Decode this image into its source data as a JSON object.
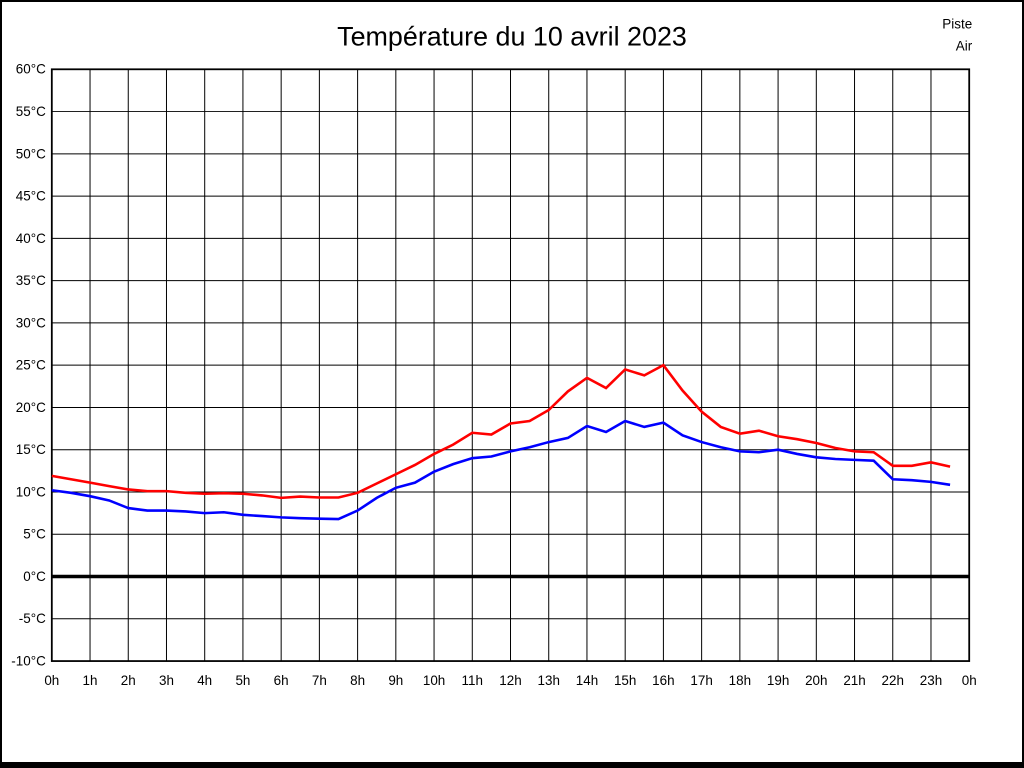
{
  "title": "Température du 10 avril 2023",
  "legend": [
    {
      "label": "Piste",
      "color": "#ff0000"
    },
    {
      "label": "Air",
      "color": "#0000ff"
    }
  ],
  "chart_data": {
    "type": "line",
    "title": "Température du 10 avril 2023",
    "x_unit": "hour",
    "xlim": [
      0,
      24
    ],
    "ylim": [
      -10,
      60
    ],
    "y_step": 5,
    "grid": true,
    "zero_line_value": 0,
    "legend_position": "top-right",
    "axis_color": "#000000",
    "x_tick_labels": [
      "0h",
      "1h",
      "2h",
      "3h",
      "4h",
      "5h",
      "6h",
      "7h",
      "8h",
      "9h",
      "10h",
      "11h",
      "12h",
      "13h",
      "14h",
      "15h",
      "16h",
      "17h",
      "18h",
      "19h",
      "20h",
      "21h",
      "22h",
      "23h",
      "0h"
    ],
    "y_tick_labels": [
      "60°C",
      "55°C",
      "50°C",
      "45°C",
      "40°C",
      "35°C",
      "30°C",
      "25°C",
      "20°C",
      "15°C",
      "10°C",
      "5°C",
      "0°C",
      "-5°C",
      "-10°C"
    ],
    "x_hours": [
      0,
      0.5,
      1,
      1.5,
      2,
      2.5,
      3,
      3.5,
      4,
      4.5,
      5,
      5.5,
      6,
      6.5,
      7,
      7.5,
      8,
      8.5,
      9,
      9.5,
      10,
      10.5,
      11,
      11.5,
      12,
      12.5,
      13,
      13.5,
      14,
      14.5,
      15,
      15.5,
      16,
      16.5,
      17,
      17.5,
      18,
      18.5,
      19,
      19.5,
      20,
      20.5,
      21,
      21.5,
      22,
      22.5,
      23,
      23.5
    ],
    "series": [
      {
        "name": "Piste",
        "color": "#ff0000",
        "values": [
          11.9,
          11.5,
          11.1,
          10.7,
          10.3,
          10.1,
          10.1,
          9.9,
          9.8,
          9.85,
          9.8,
          9.6,
          9.3,
          9.45,
          9.35,
          9.35,
          9.9,
          11.0,
          12.1,
          13.2,
          14.5,
          15.6,
          17.0,
          16.8,
          18.1,
          18.4,
          19.7,
          21.9,
          23.5,
          22.3,
          24.5,
          23.8,
          25.0,
          22.0,
          19.5,
          17.7,
          16.9,
          17.25,
          16.6,
          16.25,
          15.8,
          15.2,
          14.8,
          14.7,
          13.1,
          13.1,
          13.5,
          13.0
        ]
      },
      {
        "name": "Air",
        "color": "#0000ff",
        "values": [
          10.2,
          9.9,
          9.5,
          9.0,
          8.1,
          7.8,
          7.8,
          7.7,
          7.5,
          7.6,
          7.3,
          7.15,
          7.0,
          6.9,
          6.85,
          6.8,
          7.8,
          9.3,
          10.5,
          11.1,
          12.4,
          13.3,
          14.0,
          14.2,
          14.8,
          15.3,
          15.9,
          16.4,
          17.8,
          17.1,
          18.4,
          17.7,
          18.2,
          16.7,
          15.9,
          15.3,
          14.8,
          14.7,
          15.0,
          14.5,
          14.1,
          13.9,
          13.8,
          13.7,
          11.5,
          11.4,
          11.2,
          10.85
        ]
      }
    ]
  }
}
